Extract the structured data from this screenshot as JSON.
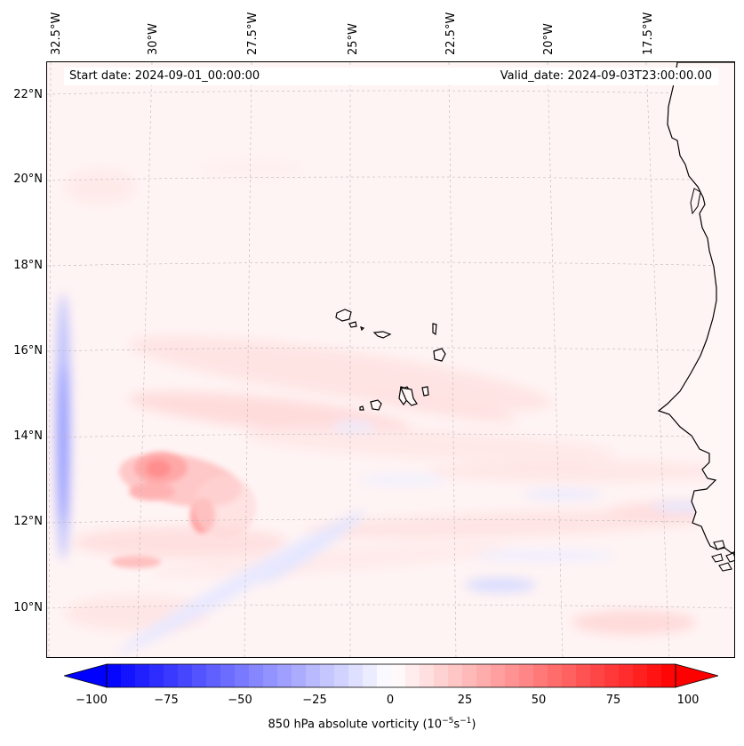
{
  "map": {
    "start_date": "Start date: 2024-09-01_00:00:00",
    "valid_date": "Valid_date: 2024-09-03T23:00:00.00",
    "longitude_labels": [
      "32.5°W",
      "30°W",
      "27.5°W",
      "25°W",
      "22.5°W",
      "20°W",
      "17.5°W"
    ],
    "latitude_labels": [
      "22°N",
      "20°N",
      "18°N",
      "16°N",
      "14°N",
      "12°N",
      "10°N"
    ],
    "features": [
      "Cabo Verde islands",
      "West African coastline"
    ],
    "field": "850 hPa absolute vorticity",
    "units": "10^-5 s^-1"
  },
  "colorbar": {
    "ticks": [
      "−100",
      "−75",
      "−50",
      "−25",
      "0",
      "25",
      "50",
      "75",
      "100"
    ],
    "label_main": "850 hPa absolute vorticity (10",
    "label_exp1": "−5",
    "label_mid": "s",
    "label_exp2": "−1",
    "label_end": ")",
    "min_color": "#0000ff",
    "mid_color": "#ffffff",
    "max_color": "#ff0000",
    "range": [
      -100,
      100
    ]
  }
}
